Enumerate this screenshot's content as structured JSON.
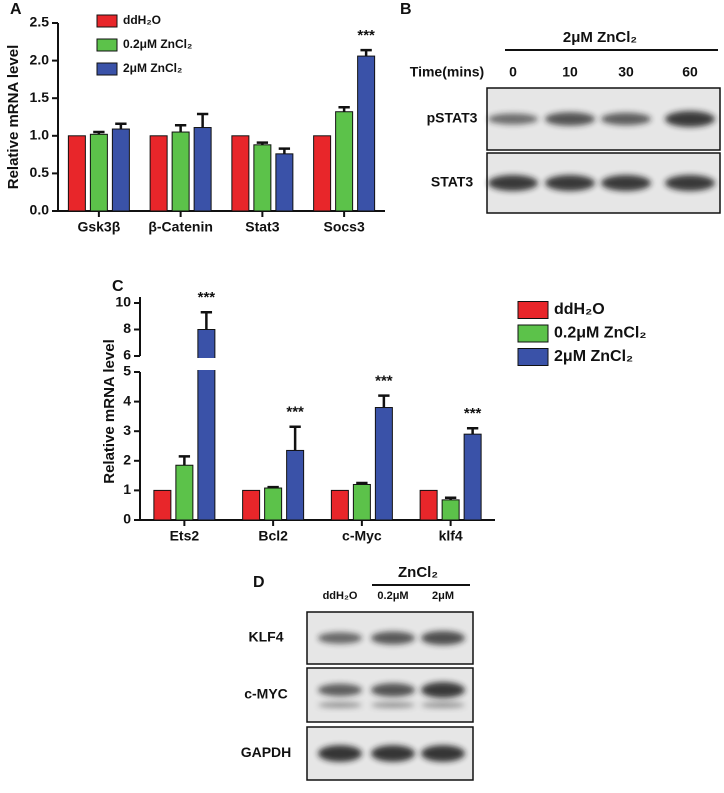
{
  "chart_data": [
    {
      "type": "bar",
      "panel": "A",
      "y_label": "Relative mRNA level",
      "categories": [
        "Gsk3β",
        "β-Catenin",
        "Stat3",
        "Socs3"
      ],
      "series": [
        {
          "name": "ddH₂O",
          "color": "#e8262a",
          "values": [
            1.0,
            1.0,
            1.0,
            1.0
          ],
          "errors": [
            0,
            0,
            0,
            0
          ]
        },
        {
          "name": "0.2μM ZnCl₂",
          "color": "#5cc24a",
          "values": [
            1.02,
            1.05,
            0.88,
            1.32
          ],
          "errors": [
            0.03,
            0.09,
            0.03,
            0.06
          ]
        },
        {
          "name": "2μM ZnCl₂",
          "color": "#3a52a8",
          "values": [
            1.09,
            1.11,
            0.76,
            2.06
          ],
          "errors": [
            0.07,
            0.18,
            0.07,
            0.08
          ]
        }
      ],
      "ylim": [
        0,
        2.5
      ],
      "yticks": [
        {
          "value": 0,
          "label": "0.0"
        },
        0.5,
        {
          "value": 1,
          "label": "1.0"
        },
        1.5,
        {
          "value": 2,
          "label": "2.0"
        },
        2.5
      ],
      "annotations": [
        {
          "text": "***",
          "category": "Socs3",
          "series": "2μM ZnCl₂"
        }
      ],
      "legend": "upper left"
    },
    {
      "type": "bar",
      "panel": "C",
      "y_label": "Relative mRNA level",
      "categories": [
        "Ets2",
        "Bcl2",
        "c-Myc",
        "klf4"
      ],
      "series": [
        {
          "name": "ddH₂O",
          "color": "#e8262a",
          "values": [
            1.0,
            1.0,
            1.0,
            1.0
          ],
          "errors": [
            0,
            0,
            0,
            0
          ]
        },
        {
          "name": "0.2μM ZnCl₂",
          "color": "#5cc24a",
          "values": [
            1.85,
            1.08,
            1.2,
            0.68
          ],
          "errors": [
            0.3,
            0.03,
            0.05,
            0.07
          ]
        },
        {
          "name": "2μM ZnCl₂",
          "color": "#3a52a8",
          "values": [
            8.0,
            2.35,
            3.8,
            2.9
          ],
          "errors": [
            1.3,
            0.8,
            0.4,
            0.2
          ]
        }
      ],
      "ylim": [
        0,
        10
      ],
      "axis_break": [
        5,
        6
      ],
      "yticks": [
        0,
        1,
        2,
        3,
        4,
        5,
        6,
        8,
        10
      ],
      "annotations": [
        {
          "text": "***",
          "category": "Ets2",
          "series": "2μM ZnCl₂"
        },
        {
          "text": "***",
          "category": "Bcl2",
          "series": "2μM ZnCl₂"
        },
        {
          "text": "***",
          "category": "c-Myc",
          "series": "2μM ZnCl₂"
        },
        {
          "text": "***",
          "category": "klf4",
          "series": "2μM ZnCl₂"
        }
      ],
      "legend": "right"
    }
  ],
  "blot_b": {
    "panel": "B",
    "treatment": "2μM ZnCl₂",
    "time_label": "Time(mins)",
    "lanes": [
      "0",
      "10",
      "30",
      "60"
    ],
    "rows": [
      "pSTAT3",
      "STAT3"
    ]
  },
  "blot_d": {
    "panel": "D",
    "treatment": "ZnCl₂",
    "lanes": [
      "ddH₂O",
      "0.2μM",
      "2μM"
    ],
    "rows": [
      "KLF4",
      "c-MYC",
      "GAPDH"
    ]
  }
}
